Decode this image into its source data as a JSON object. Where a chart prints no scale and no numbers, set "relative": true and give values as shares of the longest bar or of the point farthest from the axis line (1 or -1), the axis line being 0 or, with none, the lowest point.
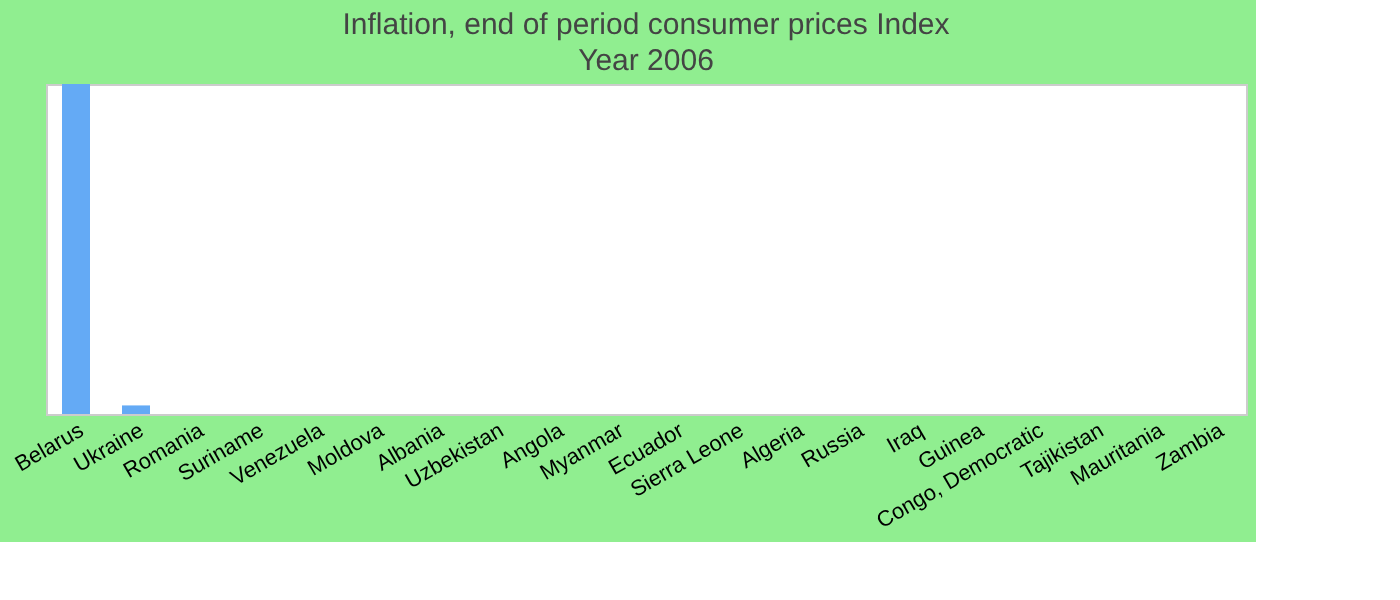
{
  "chart_data": {
    "type": "bar",
    "title": "Inflation, end of period consumer prices  Index",
    "subtitle": "Year 2006",
    "categories": [
      "Belarus",
      "Ukraine",
      "Romania",
      "Suriname",
      "Venezuela",
      "Moldova",
      "Albania",
      "Uzbekistan",
      "Angola",
      "Myanmar",
      "Ecuador",
      "Sierra Leone",
      "Algeria",
      "Russia",
      "Iraq",
      "Guinea",
      "Congo, Democratic",
      "Tajikistan",
      "Mauritania",
      "Zambia"
    ],
    "values": [
      1,
      0.026,
      0,
      0,
      0,
      0,
      0,
      0,
      0,
      0,
      0,
      0,
      0,
      0,
      0,
      0,
      0,
      0,
      0,
      0
    ],
    "color": "#64aaf5",
    "relative": true
  }
}
